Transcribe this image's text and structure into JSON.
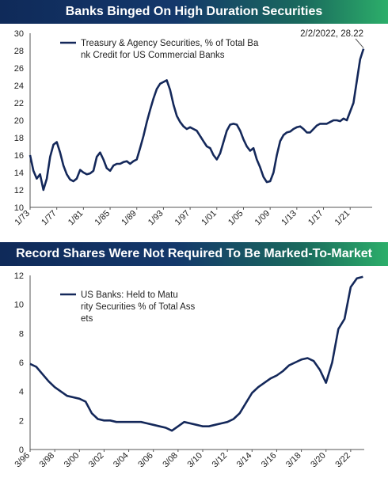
{
  "chart_data": [
    {
      "type": "line",
      "title": "Banks Binged On High Duration Securities",
      "series": [
        {
          "name": "Treasury & Agency Securities, % of Total Bank Credit for US Commercial Banks",
          "x": [
            1973,
            1973.5,
            1974,
            1974.5,
            1975,
            1975.5,
            1976,
            1976.5,
            1977,
            1977.5,
            1978,
            1978.5,
            1979,
            1979.5,
            1980,
            1980.5,
            1981,
            1981.5,
            1982,
            1982.5,
            1983,
            1983.5,
            1984,
            1984.5,
            1985,
            1985.5,
            1986,
            1986.5,
            1987,
            1987.5,
            1988,
            1988.5,
            1989,
            1989.5,
            1990,
            1990.5,
            1991,
            1991.5,
            1992,
            1992.5,
            1993,
            1993.5,
            1994,
            1994.5,
            1995,
            1995.5,
            1996,
            1996.5,
            1997,
            1997.5,
            1998,
            1998.5,
            1999,
            1999.5,
            2000,
            2000.5,
            2001,
            2001.5,
            2002,
            2002.5,
            2003,
            2003.5,
            2004,
            2004.5,
            2005,
            2005.5,
            2006,
            2006.5,
            2007,
            2007.5,
            2008,
            2008.5,
            2009,
            2009.5,
            2010,
            2010.5,
            2011,
            2011.5,
            2012,
            2012.5,
            2013,
            2013.5,
            2014,
            2014.5,
            2015,
            2015.5,
            2016,
            2016.5,
            2017,
            2017.5,
            2018,
            2018.5,
            2019,
            2019.5,
            2020,
            2020.5,
            2021,
            2021.5,
            2022,
            2022.5,
            2023
          ],
          "values": [
            16.0,
            14.2,
            13.3,
            13.8,
            12.0,
            13.3,
            15.8,
            17.2,
            17.5,
            16.3,
            14.8,
            13.8,
            13.2,
            13.0,
            13.3,
            14.3,
            14.0,
            13.8,
            13.9,
            14.2,
            15.8,
            16.3,
            15.5,
            14.5,
            14.2,
            14.8,
            15.0,
            15.0,
            15.2,
            15.3,
            15.0,
            15.3,
            15.5,
            16.8,
            18.2,
            19.8,
            21.2,
            22.5,
            23.6,
            24.2,
            24.4,
            24.6,
            23.5,
            21.8,
            20.5,
            19.8,
            19.3,
            19.0,
            19.2,
            19.0,
            18.8,
            18.2,
            17.6,
            17.0,
            16.8,
            16.0,
            15.5,
            16.2,
            17.5,
            18.8,
            19.5,
            19.6,
            19.5,
            18.8,
            17.8,
            17.0,
            16.5,
            16.8,
            15.5,
            14.6,
            13.5,
            12.9,
            13.0,
            14.0,
            16.0,
            17.6,
            18.3,
            18.6,
            18.7,
            19.0,
            19.2,
            19.3,
            19.0,
            18.6,
            18.6,
            19.0,
            19.4,
            19.6,
            19.6,
            19.6,
            19.8,
            20.0,
            20.0,
            19.9,
            20.2,
            20.0,
            21.0,
            22.0,
            24.5,
            27.0,
            28.22
          ]
        }
      ],
      "xticks": [
        "1/73",
        "1/77",
        "1/81",
        "1/85",
        "1/89",
        "1/93",
        "1/97",
        "1/01",
        "1/05",
        "1/09",
        "1/13",
        "1/17",
        "1/21"
      ],
      "yticks": [
        "10",
        "12",
        "14",
        "16",
        "18",
        "20",
        "22",
        "24",
        "26",
        "28",
        "30"
      ],
      "ylim": [
        10,
        30
      ],
      "grid": false,
      "legend": "top-left",
      "annotation": "2/2/2022, 28.22",
      "color": "#14285a"
    },
    {
      "type": "line",
      "title": "Record Shares Were Not Required To Be Marked-To-Market",
      "series": [
        {
          "name": "US Banks: Held to Maturity Securities % of Total Assets",
          "x": [
            1996,
            1996.5,
            1997,
            1997.5,
            1998,
            1998.5,
            1999,
            1999.5,
            2000,
            2000.5,
            2001,
            2001.5,
            2002,
            2002.5,
            2003,
            2003.5,
            2004,
            2004.5,
            2005,
            2005.5,
            2006,
            2006.5,
            2007,
            2007.5,
            2008,
            2008.5,
            2009,
            2009.5,
            2010,
            2010.5,
            2011,
            2011.5,
            2012,
            2012.5,
            2013,
            2013.5,
            2014,
            2014.5,
            2015,
            2015.5,
            2016,
            2016.5,
            2017,
            2017.5,
            2018,
            2018.5,
            2019,
            2019.5,
            2020,
            2020.5,
            2021,
            2021.5,
            2022,
            2022.5,
            2023
          ],
          "values": [
            5.9,
            5.7,
            5.2,
            4.7,
            4.3,
            4.0,
            3.7,
            3.6,
            3.5,
            3.3,
            2.5,
            2.1,
            2.0,
            2.0,
            1.9,
            1.9,
            1.9,
            1.9,
            1.9,
            1.8,
            1.7,
            1.6,
            1.5,
            1.3,
            1.6,
            1.9,
            1.8,
            1.7,
            1.6,
            1.6,
            1.7,
            1.8,
            1.9,
            2.1,
            2.5,
            3.2,
            3.9,
            4.3,
            4.6,
            4.9,
            5.1,
            5.4,
            5.8,
            6.0,
            6.2,
            6.3,
            6.1,
            5.5,
            4.6,
            6.0,
            8.3,
            9.0,
            11.2,
            11.8,
            11.9
          ]
        }
      ],
      "xticks": [
        "3/96",
        "3/98",
        "3/00",
        "3/02",
        "3/04",
        "3/06",
        "3/08",
        "3/10",
        "3/12",
        "3/14",
        "3/16",
        "3/18",
        "3/20",
        "3/22"
      ],
      "yticks": [
        "0",
        "2",
        "4",
        "6",
        "8",
        "10",
        "12"
      ],
      "ylim": [
        0,
        12
      ],
      "grid": false,
      "legend": "top-left",
      "color": "#14285a"
    }
  ]
}
